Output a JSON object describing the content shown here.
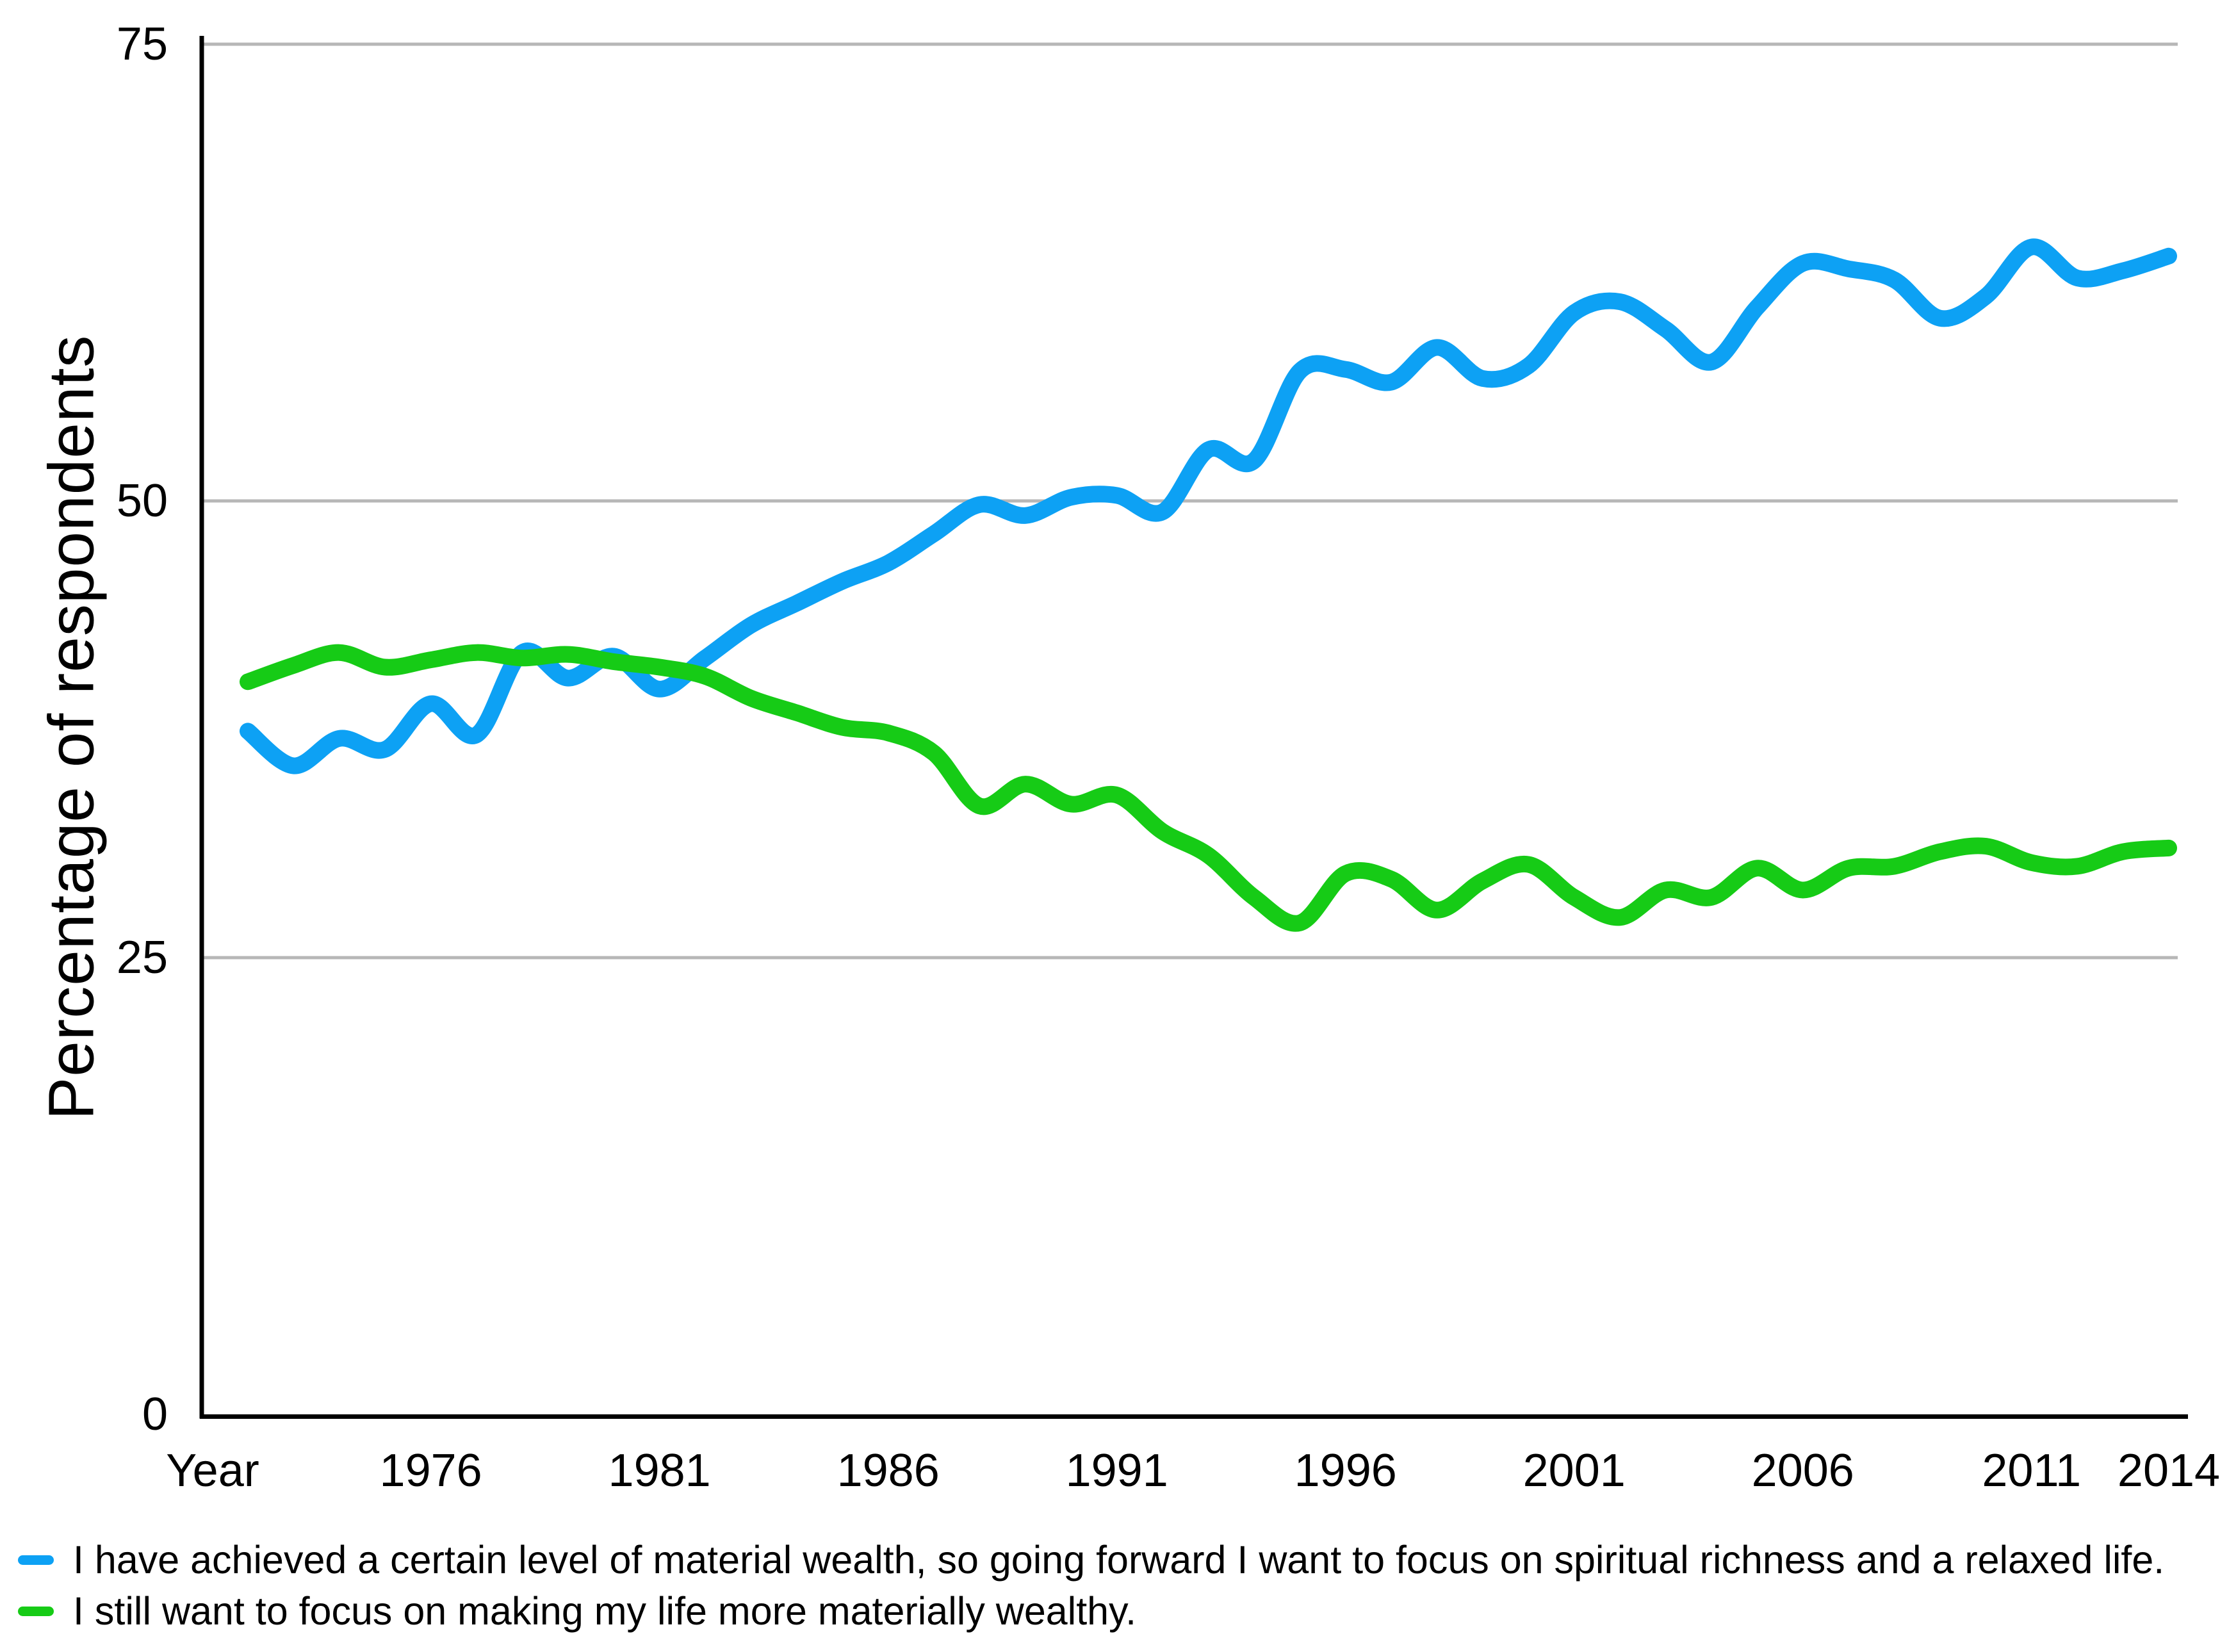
{
  "chart_data": {
    "type": "line",
    "title": "",
    "xlabel": "Year",
    "ylabel": "Percentage of respondents",
    "ylim": [
      0,
      75
    ],
    "yticks": [
      0,
      25,
      50,
      75
    ],
    "gridlines_at": [
      25,
      50,
      75
    ],
    "grid": "horizontal",
    "legend_position": "bottom-left",
    "xticks": [
      1976,
      1981,
      1986,
      1991,
      1996,
      2001,
      2006,
      2011,
      2014
    ],
    "x_range": [
      1972,
      2014
    ],
    "x": [
      1972,
      1973,
      1974,
      1975,
      1976,
      1977,
      1978,
      1979,
      1980,
      1981,
      1982,
      1983,
      1984,
      1985,
      1986,
      1987,
      1988,
      1989,
      1990,
      1991,
      1992,
      1993,
      1994,
      1995,
      1996,
      1997,
      1998,
      1999,
      2000,
      2001,
      2002,
      2003,
      2004,
      2005,
      2006,
      2007,
      2008,
      2009,
      2010,
      2011,
      2012,
      2013,
      2014
    ],
    "series": [
      {
        "name": "I have achieved a certain level of material wealth, so going forward I want to focus on spiritual richness and a relaxed life.",
        "color": "#0da1f4",
        "values": [
          37.4,
          35.5,
          37.0,
          36.4,
          38.9,
          37.2,
          41.7,
          40.3,
          41.5,
          39.7,
          41.4,
          43.2,
          44.4,
          45.6,
          46.6,
          48.2,
          49.8,
          49.2,
          50.2,
          50.3,
          49.4,
          52.8,
          52.2,
          57.1,
          57.2,
          56.5,
          58.4,
          56.7,
          57.4,
          60.3,
          60.9,
          59.4,
          57.6,
          60.6,
          63.0,
          62.7,
          62.1,
          60.0,
          61.2,
          63.9,
          62.2,
          62.6,
          63.4
        ]
      },
      {
        "name": "I still want to focus on making my life more materially wealthy.",
        "color": "#16cb16",
        "values": [
          40.1,
          41.0,
          41.7,
          40.9,
          41.3,
          41.7,
          41.4,
          41.6,
          41.2,
          40.9,
          40.4,
          39.2,
          38.4,
          37.6,
          37.3,
          36.2,
          33.3,
          34.5,
          33.4,
          33.9,
          31.9,
          30.6,
          28.3,
          26.9,
          29.6,
          29.3,
          27.6,
          29.2,
          30.1,
          28.3,
          27.2,
          28.7,
          28.3,
          29.9,
          28.7,
          29.9,
          30.0,
          30.8,
          31.1,
          30.2,
          30.0,
          30.8,
          31.0
        ]
      }
    ]
  },
  "axis": {
    "y_title": "Percentage of respondents",
    "x_title": "Year"
  },
  "legend": {
    "items": [
      {
        "label": "I have achieved a certain level of material wealth, so going forward I want to focus on spiritual richness and a relaxed life.",
        "color": "#0da1f4"
      },
      {
        "label": "I still want to focus on making my life more materially wealthy.",
        "color": "#16cb16"
      }
    ]
  },
  "colors": {
    "axis": "#000000",
    "gridline": "#b7b7b7",
    "background": "#ffffff",
    "blue_series": "#0da1f4",
    "green_series": "#16cb16"
  }
}
